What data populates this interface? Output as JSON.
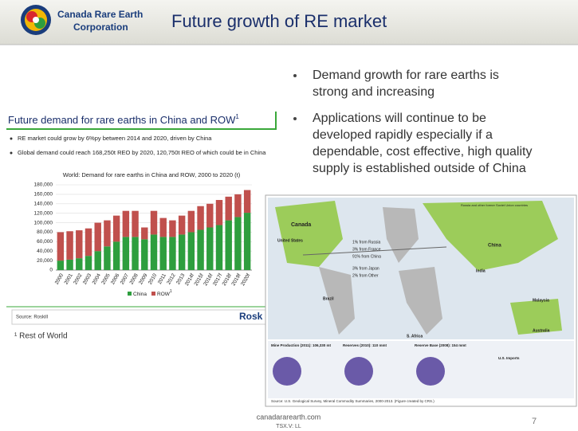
{
  "header": {
    "company_line1": "Canada Rare Earth",
    "company_line2": "Corporation",
    "title": "Future growth of RE market"
  },
  "left": {
    "heading": "Future demand for rare earths in China and ROW",
    "heading_sup": "1",
    "bullets": [
      "RE market could grow by 6%py between 2014 and 2020, driven by China",
      "Global demand could reach 168,250t REO by 2020, 120,750t REO of which could be in China"
    ],
    "source": "Source: Roskill",
    "source_logo": "Rosk",
    "footnote": "¹ Rest of World"
  },
  "chart_data": {
    "type": "stacked_bar",
    "title": "World: Demand for rare earths in China and ROW, 2000 to 2020 (t)",
    "categories": [
      "2000",
      "2001",
      "2002",
      "2003",
      "2004",
      "2005",
      "2006",
      "2007",
      "2008",
      "2009",
      "2010",
      "2011",
      "2012",
      "2013",
      "2014f",
      "2015f",
      "2016f",
      "2017f",
      "2018f",
      "2019f",
      "2020f"
    ],
    "series": [
      {
        "name": "China",
        "color": "#2e9e3e",
        "values": [
          20000,
          22000,
          25000,
          30000,
          40000,
          50000,
          60000,
          70000,
          70000,
          65000,
          75000,
          70000,
          70000,
          75000,
          80000,
          85000,
          90000,
          95000,
          105000,
          112000,
          121000
        ]
      },
      {
        "name": "ROW",
        "color": "#c0504d",
        "values": [
          60000,
          60000,
          59000,
          58000,
          60000,
          55000,
          55000,
          55000,
          55000,
          25000,
          50000,
          40000,
          35000,
          40000,
          45000,
          50000,
          50000,
          53000,
          50000,
          48000,
          48000
        ]
      }
    ],
    "legend_sup": "1",
    "ylim": [
      0,
      180000
    ],
    "yticks": [
      0,
      {
        "value": 20000,
        "label": "20,000"
      },
      {
        "value": 40000,
        "label": "40,000"
      },
      {
        "value": 60000,
        "label": "60,000"
      },
      {
        "value": 80000,
        "label": "80,000"
      },
      {
        "value": 100000,
        "label": "100,000"
      },
      {
        "value": 120000,
        "label": "120,000"
      },
      {
        "value": 140000,
        "label": "140,000"
      },
      {
        "value": 160000,
        "label": "160,000"
      },
      {
        "value": 180000,
        "label": "180,000"
      }
    ],
    "grid": true
  },
  "right": {
    "bullets": [
      [
        "Demand growth for rare earths is",
        "strong and increasing"
      ],
      [
        "Applications will continue to be",
        "developed rapidly especially if a",
        "dependable, cost effective, high quality",
        "supply is established outside of China"
      ]
    ]
  },
  "map": {
    "labels": [
      "Canada",
      "United States",
      "Brazil",
      "China",
      "India",
      "Malaysia",
      "Australia",
      "S. Africa",
      "Russia and other former Soviet Union countries",
      "1% from Russia",
      "3% from France",
      "91% from China",
      "3% from Japan",
      "2% from Other",
      "Mine Production (2011): 106,330 mt",
      "Reserves (2010): 110 mmt",
      "Reserve Base (2008): 154 mmt",
      "U.S. Imports"
    ],
    "source": "Source: U.S. Geological Survey, Mineral Commodity Summaries, 2000-2013. (Figure created by CRS.)"
  },
  "footer": {
    "site": "canadararearth.com",
    "ticker": "TSX.V: LL",
    "page": "7"
  }
}
